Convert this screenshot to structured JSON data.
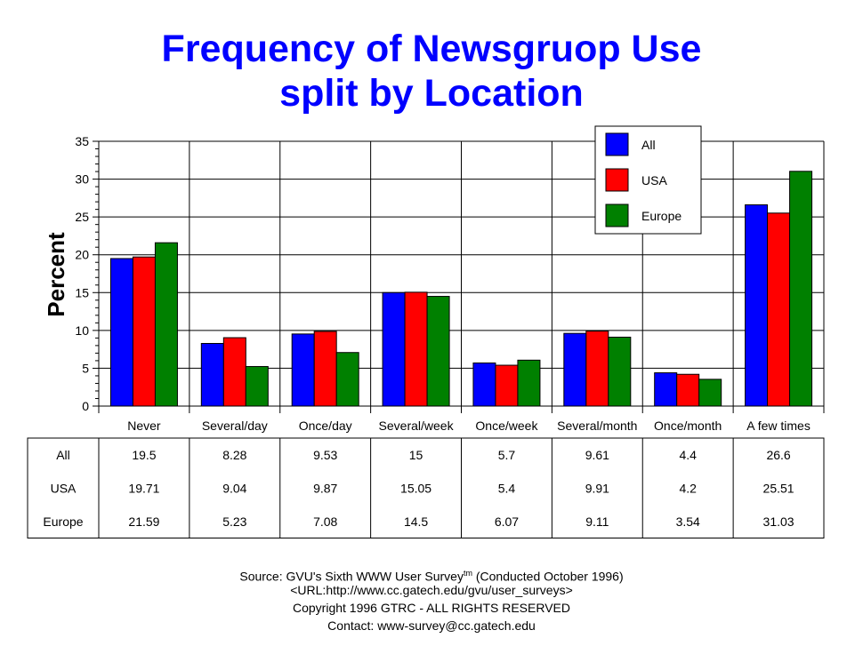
{
  "chart_data": {
    "type": "bar",
    "title": "Frequency of Newsgruop Use",
    "subtitle": "split by Location",
    "ylabel": "Percent",
    "xlabel": "",
    "ylim": [
      0,
      35
    ],
    "yticks": [
      0,
      5,
      10,
      15,
      20,
      25,
      30,
      35
    ],
    "grid": "vertical category dividers and horizontal major gridlines",
    "legend_position": "top-right",
    "categories": [
      "Never",
      "Several/day",
      "Once/day",
      "Several/week",
      "Once/week",
      "Several/month",
      "Once/month",
      "A few times"
    ],
    "series": [
      {
        "name": "All",
        "color": "#0000ff",
        "values": [
          19.5,
          8.28,
          9.53,
          15,
          5.7,
          9.61,
          4.4,
          26.6
        ],
        "labels": [
          "19.5",
          "8.28",
          "9.53",
          "15",
          "5.7",
          "9.61",
          "4.4",
          "26.6"
        ]
      },
      {
        "name": "USA",
        "color": "#ff0000",
        "values": [
          19.71,
          9.04,
          9.87,
          15.05,
          5.4,
          9.91,
          4.2,
          25.51
        ],
        "labels": [
          "19.71",
          "9.04",
          "9.87",
          "15.05",
          "5.4",
          "9.91",
          "4.2",
          "25.51"
        ]
      },
      {
        "name": "Europe",
        "color": "#008000",
        "values": [
          21.59,
          5.23,
          7.08,
          14.5,
          6.07,
          9.11,
          3.54,
          31.03
        ],
        "labels": [
          "21.59",
          "5.23",
          "7.08",
          "14.5",
          "6.07",
          "9.11",
          "3.54",
          "31.03"
        ]
      }
    ]
  },
  "footer": {
    "source_prefix": "Source: GVU's Sixth WWW User Survey",
    "source_sup": "tm",
    "source_suffix": "  (Conducted October 1996)",
    "url": "<URL:http://www.cc.gatech.edu/gvu/user_surveys>",
    "copyright": "Copyright 1996 GTRC -  ALL RIGHTS RESERVED",
    "contact": "Contact: www-survey@cc.gatech.edu"
  }
}
